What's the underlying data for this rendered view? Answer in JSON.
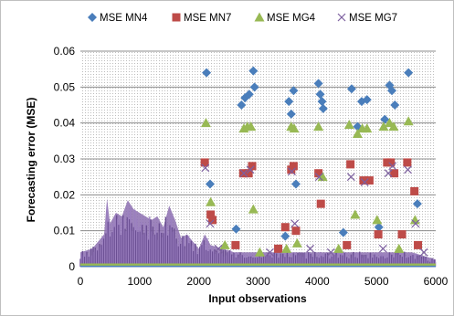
{
  "chart_data": {
    "type": "scatter",
    "xlabel": "Input observations",
    "ylabel": "Forecasting error (MSE)",
    "xlim": [
      0,
      6000
    ],
    "ylim": [
      0,
      0.06
    ],
    "x_ticks": [
      "0",
      "1000",
      "2000",
      "3000",
      "4000",
      "5000",
      "6000"
    ],
    "y_ticks": [
      "0",
      "0.01",
      "0.02",
      "0.03",
      "0.04",
      "0.05",
      "0.06"
    ],
    "legend_position": "top",
    "plot_background": "dotted-gray",
    "series": [
      {
        "name": "MSE MN4",
        "marker": "diamond",
        "color": "#4a7ebb",
        "points": [
          [
            2130,
            0.054
          ],
          [
            2190,
            0.023
          ],
          [
            2720,
            0.045
          ],
          [
            2780,
            0.047
          ],
          [
            2850,
            0.048
          ],
          [
            2920,
            0.0545
          ],
          [
            2940,
            0.05
          ],
          [
            3520,
            0.046
          ],
          [
            3560,
            0.0425
          ],
          [
            3600,
            0.049
          ],
          [
            3640,
            0.023
          ],
          [
            4020,
            0.051
          ],
          [
            4050,
            0.048
          ],
          [
            4100,
            0.044
          ],
          [
            4080,
            0.046
          ],
          [
            4580,
            0.0495
          ],
          [
            4680,
            0.039
          ],
          [
            4750,
            0.046
          ],
          [
            4840,
            0.0465
          ],
          [
            5140,
            0.041
          ],
          [
            5220,
            0.0505
          ],
          [
            5260,
            0.049
          ],
          [
            5310,
            0.045
          ],
          [
            5540,
            0.054
          ],
          [
            5690,
            0.0175
          ],
          [
            2630,
            0.0105
          ],
          [
            3460,
            0.0085
          ],
          [
            4440,
            0.0095
          ],
          [
            5040,
            0.011
          ]
        ]
      },
      {
        "name": "MSE MN7",
        "marker": "square",
        "color": "#be4b48",
        "points": [
          [
            2100,
            0.029
          ],
          [
            2200,
            0.0145
          ],
          [
            2230,
            0.013
          ],
          [
            2750,
            0.026
          ],
          [
            2840,
            0.026
          ],
          [
            2900,
            0.028
          ],
          [
            3460,
            0.011
          ],
          [
            3600,
            0.028
          ],
          [
            3560,
            0.027
          ],
          [
            3640,
            0.01
          ],
          [
            4020,
            0.026
          ],
          [
            4060,
            0.0175
          ],
          [
            4560,
            0.0285
          ],
          [
            4780,
            0.024
          ],
          [
            4880,
            0.024
          ],
          [
            5030,
            0.009
          ],
          [
            5180,
            0.029
          ],
          [
            5240,
            0.029
          ],
          [
            5300,
            0.026
          ],
          [
            5520,
            0.029
          ],
          [
            5640,
            0.021
          ],
          [
            5700,
            0.006
          ],
          [
            2620,
            0.006
          ],
          [
            3340,
            0.005
          ],
          [
            4500,
            0.006
          ],
          [
            5430,
            0.009
          ]
        ]
      },
      {
        "name": "MSE MG4",
        "marker": "triangle",
        "color": "#98b954",
        "points": [
          [
            2120,
            0.04
          ],
          [
            2200,
            0.018
          ],
          [
            2760,
            0.0385
          ],
          [
            2820,
            0.039
          ],
          [
            2880,
            0.039
          ],
          [
            2920,
            0.016
          ],
          [
            3560,
            0.039
          ],
          [
            3610,
            0.0385
          ],
          [
            3660,
            0.0065
          ],
          [
            4020,
            0.039
          ],
          [
            4090,
            0.025
          ],
          [
            4540,
            0.0395
          ],
          [
            4680,
            0.037
          ],
          [
            4760,
            0.0385
          ],
          [
            4840,
            0.0385
          ],
          [
            5120,
            0.039
          ],
          [
            5220,
            0.04
          ],
          [
            5290,
            0.039
          ],
          [
            5540,
            0.0405
          ],
          [
            5650,
            0.013
          ],
          [
            2440,
            0.006
          ],
          [
            3030,
            0.004
          ],
          [
            3480,
            0.005
          ],
          [
            4360,
            0.005
          ],
          [
            4640,
            0.0145
          ],
          [
            5010,
            0.013
          ],
          [
            5380,
            0.005
          ]
        ]
      },
      {
        "name": "MSE MG7",
        "marker": "x",
        "color": "#7d60a0",
        "points": [
          [
            2110,
            0.0275
          ],
          [
            2190,
            0.012
          ],
          [
            2760,
            0.026
          ],
          [
            2870,
            0.027
          ],
          [
            3570,
            0.0265
          ],
          [
            3620,
            0.012
          ],
          [
            4030,
            0.025
          ],
          [
            4570,
            0.025
          ],
          [
            4800,
            0.0235
          ],
          [
            5200,
            0.026
          ],
          [
            5270,
            0.028
          ],
          [
            5530,
            0.027
          ],
          [
            5660,
            0.012
          ],
          [
            2330,
            0.005
          ],
          [
            3200,
            0.004
          ],
          [
            3880,
            0.005
          ],
          [
            4230,
            0.004
          ],
          [
            5110,
            0.005
          ],
          [
            5800,
            0.004
          ]
        ]
      }
    ],
    "dense_band_note": "",
    "dense_profile_x": [
      0,
      200,
      400,
      450,
      500,
      600,
      700,
      800,
      900,
      1000,
      1100,
      1200,
      1300,
      1400,
      1500,
      1600,
      1700,
      1800,
      1900,
      2000,
      2100,
      2200,
      2400,
      2600,
      2800,
      3000,
      3200,
      3400,
      3600,
      3800,
      4000,
      4200,
      4400,
      4600,
      4800,
      5000,
      5200,
      5400,
      5600,
      5800,
      6000
    ],
    "dense_profile_y": [
      0.004,
      0.005,
      0.009,
      0.019,
      0.012,
      0.015,
      0.014,
      0.0185,
      0.016,
      0.015,
      0.014,
      0.013,
      0.014,
      0.011,
      0.017,
      0.013,
      0.008,
      0.009,
      0.007,
      0.005,
      0.009,
      0.006,
      0.005,
      0.004,
      0.004,
      0.004,
      0.004,
      0.004,
      0.004,
      0.004,
      0.004,
      0.004,
      0.004,
      0.004,
      0.004,
      0.004,
      0.004,
      0.004,
      0.004,
      0.003,
      0.002
    ]
  }
}
